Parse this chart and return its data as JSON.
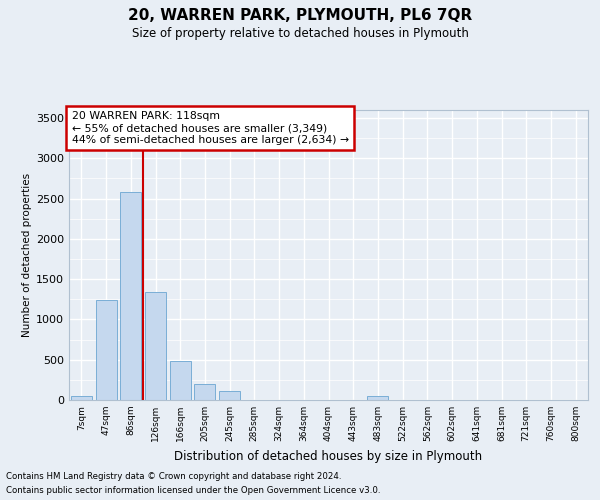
{
  "title": "20, WARREN PARK, PLYMOUTH, PL6 7QR",
  "subtitle": "Size of property relative to detached houses in Plymouth",
  "xlabel": "Distribution of detached houses by size in Plymouth",
  "ylabel": "Number of detached properties",
  "footnote1": "Contains HM Land Registry data © Crown copyright and database right 2024.",
  "footnote2": "Contains public sector information licensed under the Open Government Licence v3.0.",
  "categories": [
    "7sqm",
    "47sqm",
    "86sqm",
    "126sqm",
    "166sqm",
    "205sqm",
    "245sqm",
    "285sqm",
    "324sqm",
    "364sqm",
    "404sqm",
    "443sqm",
    "483sqm",
    "522sqm",
    "562sqm",
    "602sqm",
    "641sqm",
    "681sqm",
    "721sqm",
    "760sqm",
    "800sqm"
  ],
  "values": [
    55,
    1240,
    2580,
    1340,
    490,
    200,
    110,
    0,
    0,
    0,
    0,
    0,
    50,
    0,
    0,
    0,
    0,
    0,
    0,
    0,
    0
  ],
  "bar_color": "#c5d8ee",
  "bar_edge_color": "#7aaed6",
  "property_line_index": 3,
  "annotation_title": "20 WARREN PARK: 118sqm",
  "annotation_line1": "← 55% of detached houses are smaller (3,349)",
  "annotation_line2": "44% of semi-detached houses are larger (2,634) →",
  "annotation_box_edgecolor": "#cc0000",
  "property_line_color": "#cc0000",
  "ylim": [
    0,
    3600
  ],
  "yticks": [
    0,
    500,
    1000,
    1500,
    2000,
    2500,
    3000,
    3500
  ],
  "background_color": "#e8eef5",
  "grid_color": "#ffffff",
  "chart_border_color": "#b0c0d0"
}
